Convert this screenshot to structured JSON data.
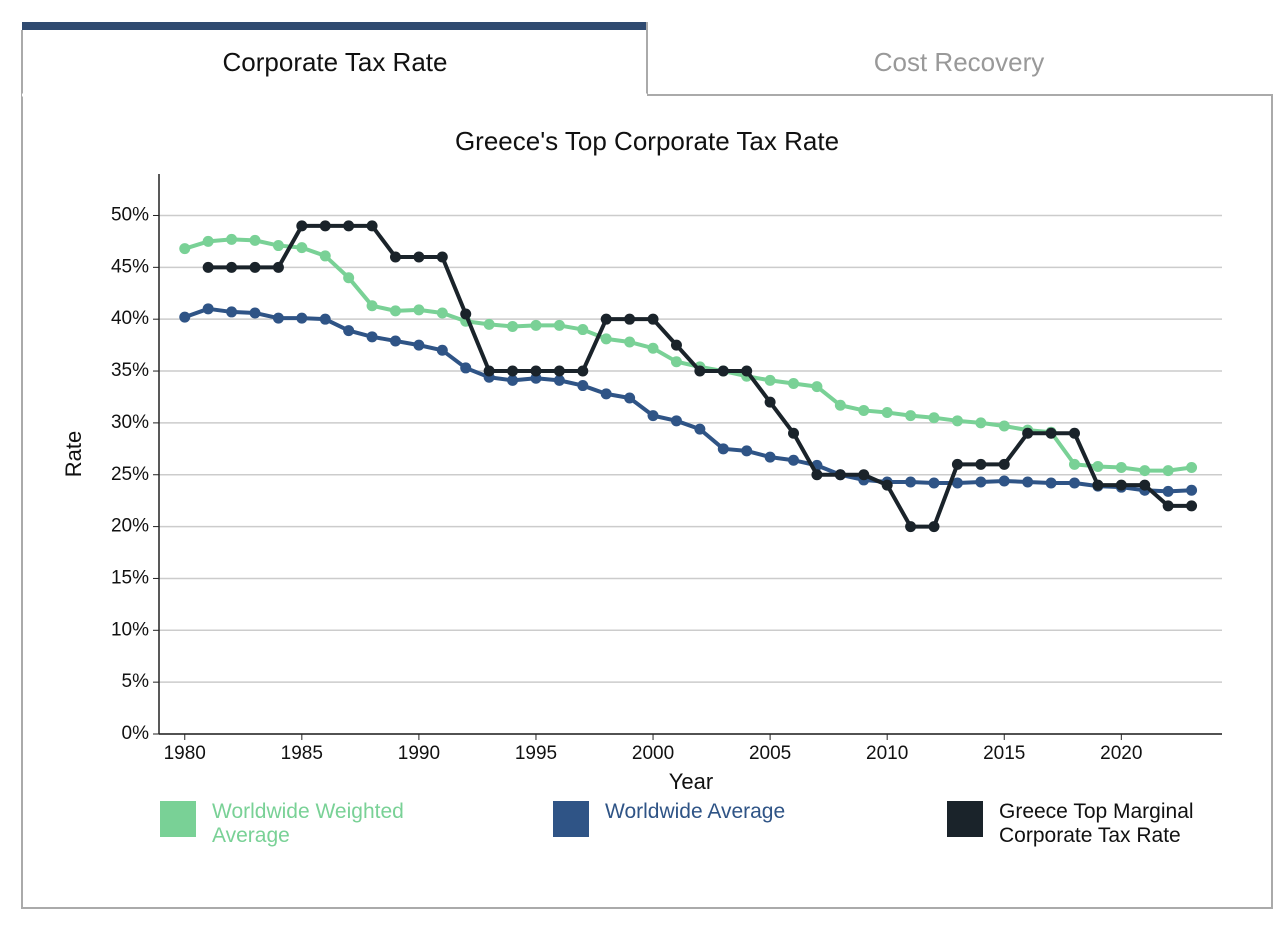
{
  "tabs": [
    "Corporate Tax Rate",
    "Cost Recovery"
  ],
  "chart_data": {
    "type": "line",
    "title": "Greece's Top Corporate Tax Rate",
    "x_label": "Year",
    "y_label": "Rate",
    "x": [
      1980,
      1981,
      1982,
      1983,
      1984,
      1985,
      1986,
      1987,
      1988,
      1989,
      1990,
      1991,
      1992,
      1993,
      1994,
      1995,
      1996,
      1997,
      1998,
      1999,
      2000,
      2001,
      2002,
      2003,
      2004,
      2005,
      2006,
      2007,
      2008,
      2009,
      2010,
      2011,
      2012,
      2013,
      2014,
      2015,
      2016,
      2017,
      2018,
      2019,
      2020,
      2021,
      2022,
      2023
    ],
    "xlim": [
      1978.9,
      2024.3
    ],
    "xticks": [
      1980,
      1985,
      1990,
      1995,
      2000,
      2005,
      2010,
      2015,
      2020
    ],
    "ylim": [
      0,
      54
    ],
    "yticks": [
      {
        "value": 0,
        "label": "0%"
      },
      {
        "value": 5,
        "label": "5%"
      },
      {
        "value": 10,
        "label": "10%"
      },
      {
        "value": 15,
        "label": "15%"
      },
      {
        "value": 20,
        "label": "20%"
      },
      {
        "value": 25,
        "label": "25%"
      },
      {
        "value": 30,
        "label": "30%"
      },
      {
        "value": 35,
        "label": "35%"
      },
      {
        "value": 40,
        "label": "40%"
      },
      {
        "value": 45,
        "label": "45%"
      },
      {
        "value": 50,
        "label": "50%"
      }
    ],
    "grid": true,
    "series": [
      {
        "name": "Worldwide Weighted Average",
        "color": "#79d196",
        "values": [
          46.8,
          47.5,
          47.7,
          47.6,
          47.1,
          46.9,
          46.1,
          44.0,
          41.3,
          40.8,
          40.9,
          40.6,
          39.8,
          39.5,
          39.3,
          39.4,
          39.4,
          39.0,
          38.1,
          37.8,
          37.2,
          35.9,
          35.4,
          35.0,
          34.5,
          34.1,
          33.8,
          33.5,
          31.7,
          31.2,
          31.0,
          30.7,
          30.5,
          30.2,
          30.0,
          29.7,
          29.3,
          29.1,
          26.0,
          25.8,
          25.7,
          25.4,
          25.4,
          25.7
        ]
      },
      {
        "name": "Worldwide Average",
        "color": "#2f5486",
        "values": [
          40.2,
          41.0,
          40.7,
          40.6,
          40.1,
          40.1,
          40.0,
          38.9,
          38.3,
          37.9,
          37.5,
          37.0,
          35.3,
          34.4,
          34.1,
          34.3,
          34.1,
          33.6,
          32.8,
          32.4,
          30.7,
          30.2,
          29.4,
          27.5,
          27.3,
          26.7,
          26.4,
          25.9,
          25.0,
          24.5,
          24.3,
          24.3,
          24.2,
          24.2,
          24.3,
          24.4,
          24.3,
          24.2,
          24.2,
          23.9,
          23.8,
          23.5,
          23.4,
          23.5
        ]
      },
      {
        "name": "Greece Top Marginal Corporate Tax Rate",
        "color": "#1a232a",
        "values": [
          null,
          45,
          45,
          45,
          45,
          49,
          49,
          49,
          49,
          46,
          46,
          46,
          40.5,
          35,
          35,
          35,
          35,
          35,
          40,
          40,
          40,
          37.5,
          35,
          35,
          35,
          32,
          29,
          25,
          25,
          25,
          24,
          20,
          20,
          26,
          26,
          26,
          29,
          29,
          29,
          24,
          24,
          24,
          22,
          22
        ]
      }
    ]
  }
}
